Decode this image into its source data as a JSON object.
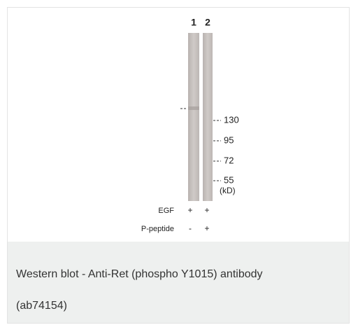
{
  "figure": {
    "lanes": [
      "1",
      "2"
    ],
    "markers": [
      "130",
      "95",
      "72",
      "55"
    ],
    "unit": "(kD)",
    "conditions": [
      {
        "label": "EGF",
        "lanes": [
          "+",
          "+"
        ]
      },
      {
        "label": "P-peptide",
        "lanes": [
          "-",
          "+"
        ]
      }
    ]
  },
  "caption": [
    "Western blot - Anti-Ret (phospho Y1015) antibody",
    "(ab74154)"
  ]
}
